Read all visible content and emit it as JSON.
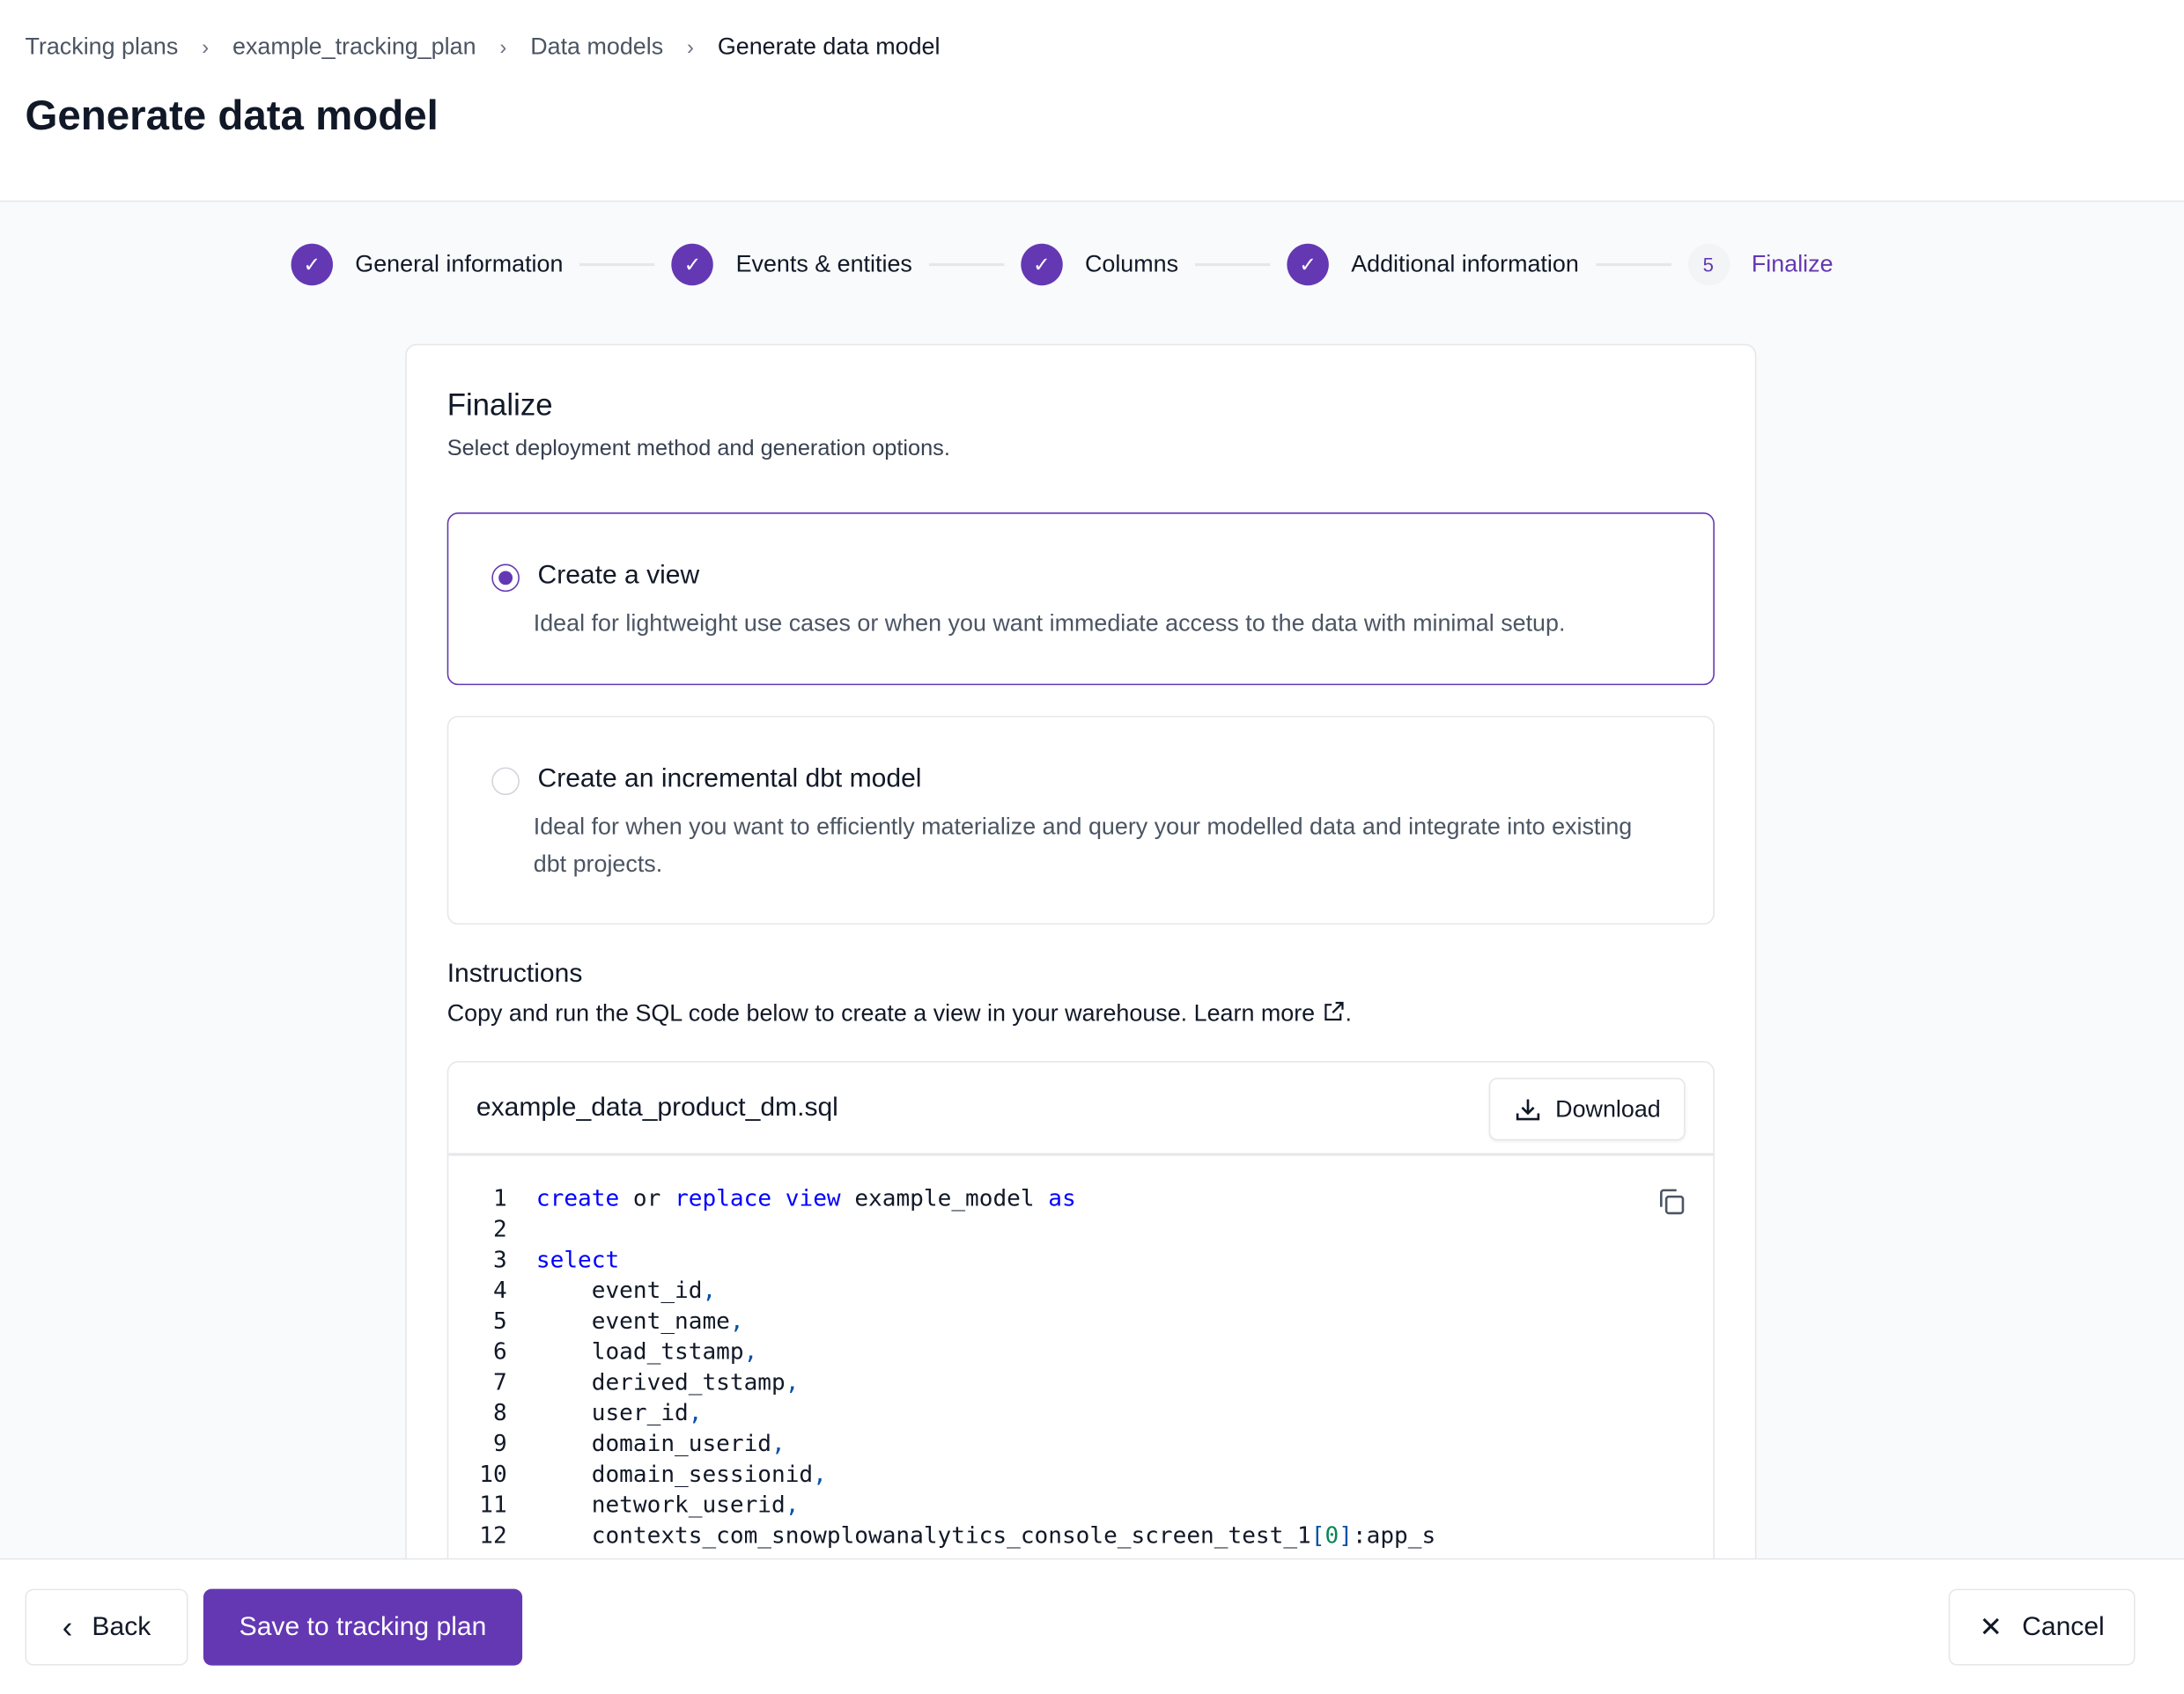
{
  "breadcrumb": [
    "Tracking plans",
    "example_tracking_plan",
    "Data models",
    "Generate data model"
  ],
  "page_title": "Generate data model",
  "steps": [
    {
      "label": "General information",
      "status": "done"
    },
    {
      "label": "Events & entities",
      "status": "done"
    },
    {
      "label": "Columns",
      "status": "done"
    },
    {
      "label": "Additional information",
      "status": "done"
    },
    {
      "number": "5",
      "label": "Finalize",
      "status": "active"
    }
  ],
  "card": {
    "title": "Finalize",
    "subtitle": "Select deployment method and generation options.",
    "options": [
      {
        "title": "Create a view",
        "desc": "Ideal for lightweight use cases or when you want immediate access to the data with minimal setup.",
        "selected": true
      },
      {
        "title": "Create an incremental dbt model",
        "desc": "Ideal for when you want to efficiently materialize and query your modelled data and integrate into existing dbt projects.",
        "selected": false
      }
    ],
    "instructions_title": "Instructions",
    "instructions_text": "Copy and run the SQL code below to create a view in your warehouse. ",
    "learn_more": "Learn more",
    "period": "."
  },
  "code": {
    "filename": "example_data_product_dm.sql",
    "download_label": "Download",
    "lines": [
      [
        [
          "kw",
          "create"
        ],
        [
          "",
          "or "
        ],
        [
          "kw",
          "replace"
        ],
        [
          "",
          ""
        ],
        [
          "kw",
          "view"
        ],
        [
          "",
          "example_model "
        ],
        [
          "kw",
          "as"
        ]
      ],
      [],
      [
        [
          "kw",
          "select"
        ]
      ],
      [
        [
          "",
          "    event_id"
        ],
        [
          "pu",
          ","
        ]
      ],
      [
        [
          "",
          "    event_name"
        ],
        [
          "pu",
          ","
        ]
      ],
      [
        [
          "",
          "    load_tstamp"
        ],
        [
          "pu",
          ","
        ]
      ],
      [
        [
          "",
          "    derived_tstamp"
        ],
        [
          "pu",
          ","
        ]
      ],
      [
        [
          "",
          "    user_id"
        ],
        [
          "pu",
          ","
        ]
      ],
      [
        [
          "",
          "    domain_userid"
        ],
        [
          "pu",
          ","
        ]
      ],
      [
        [
          "",
          "    domain_sessionid"
        ],
        [
          "pu",
          ","
        ]
      ],
      [
        [
          "",
          "    network_userid"
        ],
        [
          "pu",
          ","
        ]
      ],
      [
        [
          "",
          "    contexts_com_snowplowanalytics_console_screen_test_1"
        ],
        [
          "pu",
          "["
        ],
        [
          "nm",
          "0"
        ],
        [
          "pu",
          "]"
        ],
        [
          "",
          ":app_s"
        ]
      ]
    ]
  },
  "footer": {
    "back": "Back",
    "save": "Save to tracking plan",
    "cancel": "Cancel"
  },
  "colors": {
    "accent": "#6438b3",
    "keyword": "#0000ff"
  }
}
